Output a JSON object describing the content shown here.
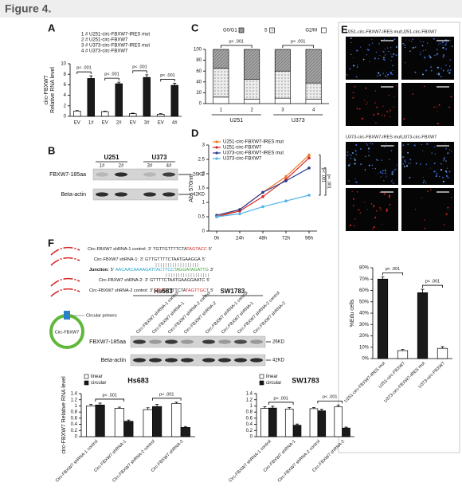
{
  "figure_title": "Figure 4.",
  "panel_labels": [
    "A",
    "B",
    "C",
    "D",
    "E",
    "F"
  ],
  "chart_data": [
    {
      "type": "bar",
      "ylabel": [
        "circ-FBXW7",
        "Relative RNA level"
      ],
      "legend_lines": [
        "1 # U251-circ-FBXW7-IRES mut",
        "2 # U251-circ-FBXW7",
        "3 # U373-circ-FBXW7-IRES mut",
        "4 # U373-circ-FBXW7"
      ],
      "categories": [
        "EV",
        "1#",
        "EV",
        "2#",
        "EV",
        "3#",
        "EV",
        "4#"
      ],
      "values": [
        1.0,
        7.2,
        0.9,
        6.2,
        0.5,
        7.4,
        0.4,
        5.9
      ],
      "errors": [
        0.1,
        0.5,
        0.1,
        0.3,
        0.1,
        0.5,
        0.1,
        0.4
      ],
      "colors": [
        "#ffffff",
        "#1a1a1a",
        "#ffffff",
        "#1a1a1a",
        "#ffffff",
        "#1a1a1a",
        "#ffffff",
        "#1a1a1a"
      ],
      "ylim": [
        0,
        10
      ],
      "yticks": [
        0,
        2,
        4,
        6,
        8,
        10
      ],
      "annotations": [
        "p< .001",
        "p< .001",
        "p< .001",
        "p< .001"
      ]
    },
    {
      "type": "stacked_bar",
      "categories": [
        "1",
        "2",
        "3",
        "4"
      ],
      "groups": [
        "U251",
        "U373"
      ],
      "series": [
        {
          "name": "G0/G1",
          "color": "#a3a3a3",
          "pattern": "hatch",
          "values": [
            35,
            55,
            40,
            62
          ]
        },
        {
          "name": "S",
          "color": "#ececec",
          "pattern": "dots",
          "values": [
            53,
            37,
            50,
            30
          ]
        },
        {
          "name": "G2/M",
          "color": "#ffffff",
          "values": [
            12,
            8,
            10,
            8
          ]
        }
      ],
      "ylim": [
        0,
        100
      ],
      "yticks": [
        0,
        20,
        40,
        60,
        80,
        100
      ],
      "annotations": [
        "p< .001",
        "p< .001"
      ]
    },
    {
      "type": "line",
      "ylabel": "Abs 570nm",
      "categories": [
        "0h",
        "24h",
        "48h",
        "72h",
        "96h"
      ],
      "series": [
        {
          "name": "U251-circ-FBXW7-IRES mut",
          "color": "#f07d2a",
          "values": [
            0.5,
            0.75,
            1.35,
            1.9,
            2.65
          ]
        },
        {
          "name": "U251-circ-FBXW7",
          "color": "#d62728",
          "values": [
            0.5,
            0.7,
            1.2,
            1.8,
            2.55
          ]
        },
        {
          "name": "U373-circ-FBXW7-IRES mut",
          "color": "#2b3a8c",
          "values": [
            0.55,
            0.75,
            1.35,
            1.75,
            2.2
          ]
        },
        {
          "name": "U373-circ-FBXW7",
          "color": "#4fb3e8",
          "values": [
            0.5,
            0.6,
            0.85,
            1.05,
            1.25
          ]
        }
      ],
      "ylim": [
        0,
        3
      ],
      "yticks": [
        0,
        0.5,
        1,
        1.5,
        2,
        2.5,
        3
      ],
      "annotations": [
        "p< .001",
        "p< .001"
      ]
    },
    {
      "type": "bar",
      "ylabel": "%Edu cells",
      "categories": [
        "U251-circ-FBXW7-IRES mut",
        "U251-circ-FBXW7",
        "U373-circ-FBXW7-IRES mut",
        "U373-circ-FBXW7"
      ],
      "values": [
        70,
        7,
        58,
        9
      ],
      "errors": [
        2,
        1,
        3,
        1.5
      ],
      "colors": [
        "#1a1a1a",
        "#ffffff",
        "#1a1a1a",
        "#ffffff"
      ],
      "ylim": [
        0,
        80
      ],
      "yticks": [
        {
          "value": 0,
          "label": "0%"
        },
        {
          "value": 10,
          "label": "10%"
        },
        {
          "value": 20,
          "label": "20%"
        },
        {
          "value": 30,
          "label": "30%"
        },
        {
          "value": 40,
          "label": "40%"
        },
        {
          "value": 50,
          "label": "50%"
        },
        {
          "value": 60,
          "label": "60%"
        },
        {
          "value": 70,
          "label": "70%"
        },
        {
          "value": 80,
          "label": "80%"
        }
      ],
      "annotations": [
        "p< .001",
        "p< .001"
      ]
    },
    {
      "type": "grouped_bar",
      "title": "Hs683",
      "ylabel": "circ-FBXW7 Relative RNA level",
      "categories": [
        "Circ-FBXW7 shRNA-1 control",
        "Circ-FBXW7 shRNA-1",
        "Circ-FBXW7 shRNA-2 control",
        "Circ-FBXW7 shRNA-2"
      ],
      "series": [
        {
          "name": "linear",
          "color": "#ffffff",
          "values": [
            1.0,
            0.92,
            0.88,
            1.08
          ],
          "errors": [
            0.05,
            0.04,
            0.06,
            0.04
          ]
        },
        {
          "name": "circular",
          "color": "#1a1a1a",
          "values": [
            1.03,
            0.5,
            0.98,
            0.3
          ],
          "errors": [
            0.06,
            0.04,
            0.07,
            0.03
          ]
        }
      ],
      "ylim": [
        0,
        1.4
      ],
      "yticks": [
        0,
        0.2,
        0.4,
        0.6,
        0.8,
        1,
        1.2,
        1.4
      ],
      "annotations": [
        "p< .001",
        "p< .001"
      ]
    },
    {
      "type": "grouped_bar",
      "title": "SW1783",
      "categories": [
        "Circ-FBXW7 shRNA-1 control",
        "Circ-FBXW7 shRNA-1",
        "Circ-FBXW7 shRNA-2 control",
        "Circ-FBXW7 shRNA-2"
      ],
      "series": [
        {
          "name": "linear",
          "color": "#ffffff",
          "values": [
            0.92,
            0.9,
            0.91,
            0.97
          ],
          "errors": [
            0.05,
            0.05,
            0.04,
            0.06
          ]
        },
        {
          "name": "circular",
          "color": "#1a1a1a",
          "values": [
            0.93,
            0.37,
            0.84,
            0.28
          ],
          "errors": [
            0.06,
            0.04,
            0.05,
            0.03
          ]
        }
      ],
      "ylim": [
        0,
        1.4
      ],
      "yticks": [
        0,
        0.2,
        0.4,
        0.6,
        0.8,
        1,
        1.2,
        1.4
      ],
      "annotations": [
        "p< .001",
        "p< .001"
      ]
    }
  ],
  "blot_b": {
    "groups": [
      "U251",
      "U373"
    ],
    "lanes": [
      "1#",
      "2#",
      "3#",
      "4#"
    ],
    "rows": [
      "FBXW7-185aa",
      "Beta-actin"
    ],
    "sizes": [
      "26KD",
      "42KD"
    ]
  },
  "micrographs": {
    "labels": [
      "U251-circ-FBXW7-IRES mut",
      "U251-circ-FBXW7",
      "U373-circ-FBXW7-IRES mut",
      "U373-circ-FBXW7"
    ]
  },
  "diagram_f": {
    "sequences": [
      {
        "label": "Circ-FBXW7 shRNA-1 control:",
        "start": "3'",
        "parts": [
          "TGTTGTTTTCTA",
          "TAGTACC"
        ],
        "colors": [
          "#222222",
          "#d62728"
        ],
        "end": "5'"
      },
      {
        "label": "Circ-FBXW7 shRNA-1:",
        "start": "3'",
        "parts": [
          "GTTGTTTTCTAATGAAGGA"
        ],
        "colors": [
          "#222222"
        ],
        "end": "5'"
      },
      {
        "label": "Junction:",
        "start": "5'",
        "parts": [
          "AACAACAAAAGATTACTTCC",
          "TAGGATAGATTG"
        ],
        "colors": [
          "#1fa2c9",
          "#3aa63a"
        ],
        "end": "3'"
      },
      {
        "label": "Circ-FBXW7 shRNA-2:",
        "start": "3'",
        "parts": [
          "GTTTTCTAATGAAGGAATC"
        ],
        "colors": [
          "#222222"
        ],
        "end": "5'"
      },
      {
        "label": "Circ-FBXW7 shRNA-2 control:",
        "start": "3'",
        "parts": [
          "GTT",
          "GTTTTCTA",
          "TAGTTGCT"
        ],
        "colors": [
          "#d62728",
          "#222222",
          "#d62728"
        ],
        "end": "5'"
      }
    ],
    "primers_label": "Circular primers",
    "circle_label": "Circ-FBXW7"
  },
  "blot_f": {
    "groups": [
      "Hs683",
      "SW1783"
    ],
    "lanes": [
      "Circ-FBXW7 shRNA-1 control",
      "Circ-FBXW7 shRNA-1",
      "Circ-FBXW7 shRNA-2 control",
      "Circ-FBXW7 shRNA-2"
    ],
    "rows": [
      "FBXW7-185aa",
      "Beta-actin"
    ],
    "sizes": [
      "26KD",
      "42KD"
    ]
  }
}
